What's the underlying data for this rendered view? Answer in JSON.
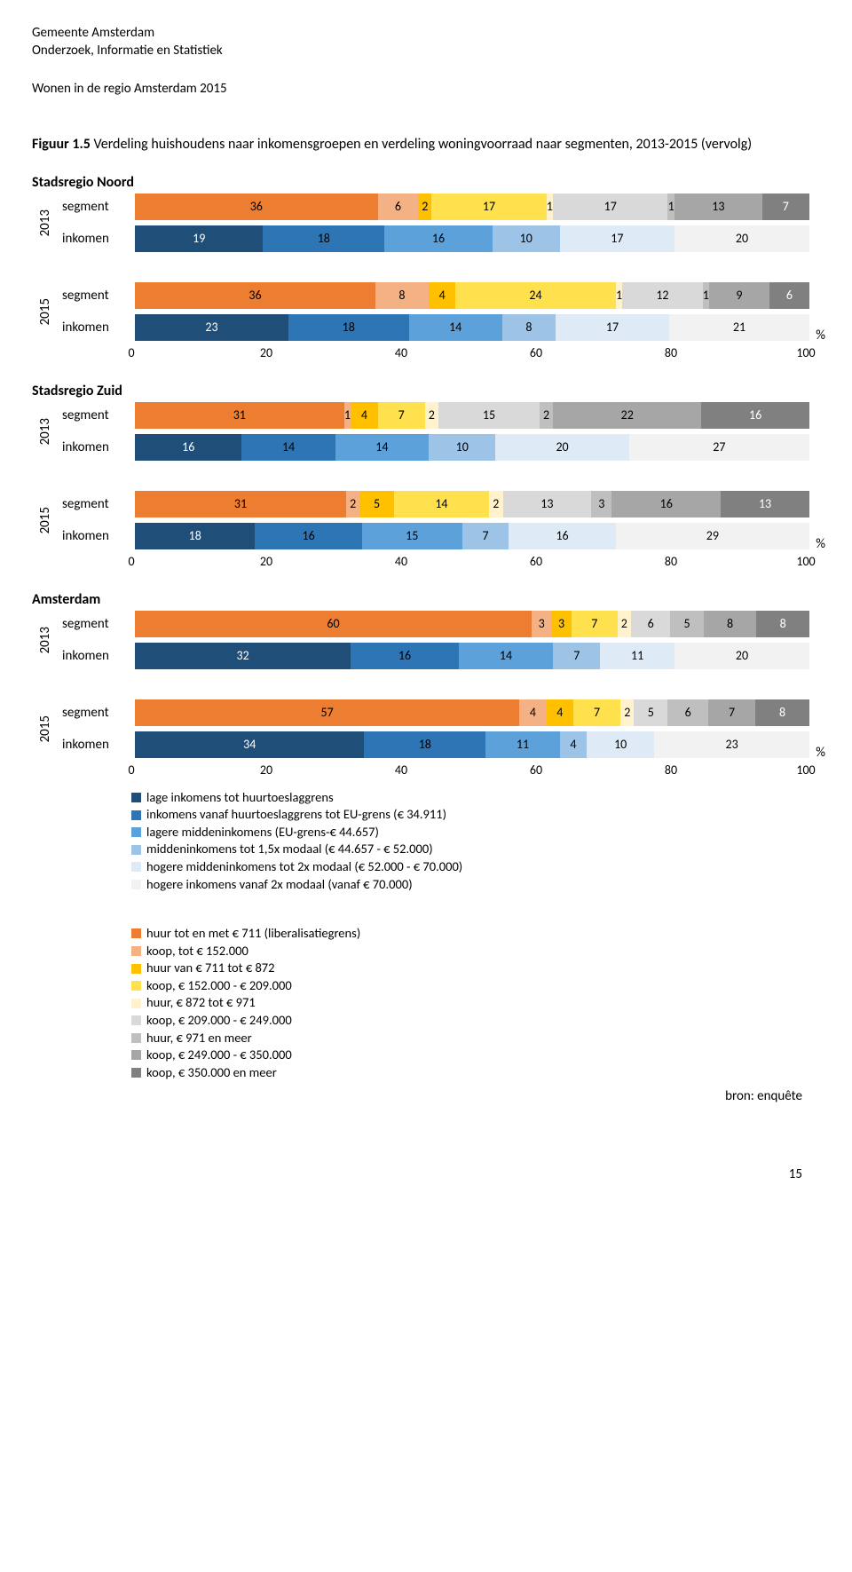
{
  "header": {
    "org": "Gemeente Amsterdam",
    "dept": "Onderzoek, Informatie en Statistiek",
    "report": "Wonen in de regio Amsterdam 2015"
  },
  "figure": {
    "prefix": "Figuur 1.5",
    "title_rest": "  Verdeling huishoudens naar inkomensgroepen en verdeling woningvoorraad naar segmenten, 2013-2015 (vervolg)"
  },
  "colors": {
    "segment": [
      "#ED7D31",
      "#F4B183",
      "#FFC000",
      "#FFE14D",
      "#FFF2CC",
      "#D9D9D9",
      "#BFBFBF",
      "#A6A6A6",
      "#808080",
      "#595959"
    ],
    "inkomen": [
      "#1F4E79",
      "#2E75B6",
      "#5DA1DB",
      "#9DC3E6",
      "#DEEBF7",
      "#F2F2F2"
    ],
    "text_light_on": [
      "#1F4E79",
      "#595959",
      "#808080"
    ]
  },
  "axis": {
    "ticks": [
      0,
      20,
      40,
      60,
      80,
      100
    ],
    "pct": "%"
  },
  "row_labels": {
    "segment": "segment",
    "inkomen": "inkomen"
  },
  "regions": [
    {
      "name": "Stadsregio Noord",
      "years": [
        {
          "year": "2013",
          "segment": [
            36,
            6,
            2,
            17,
            1,
            17,
            1,
            13,
            7
          ],
          "inkomen": [
            19,
            18,
            16,
            10,
            17,
            20
          ],
          "show_axis": false
        },
        {
          "year": "2015",
          "segment": [
            36,
            8,
            4,
            24,
            1,
            12,
            1,
            9,
            6
          ],
          "segment_pad_to": 101,
          "inkomen": [
            23,
            18,
            14,
            8,
            17,
            21
          ],
          "inkomen_pad_to": 101,
          "show_axis": true
        }
      ]
    },
    {
      "name": "Stadsregio Zuid",
      "years": [
        {
          "year": "2013",
          "segment": [
            31,
            1,
            4,
            7,
            2,
            15,
            2,
            22,
            16
          ],
          "inkomen": [
            16,
            14,
            14,
            10,
            20,
            27
          ],
          "inkomen_pad_to": 101,
          "show_axis": false
        },
        {
          "year": "2015",
          "segment": [
            31,
            2,
            5,
            14,
            2,
            13,
            3,
            16,
            13
          ],
          "segment_pad_to": 99,
          "inkomen": [
            18,
            16,
            15,
            7,
            16,
            29
          ],
          "inkomen_pad_to": 101,
          "show_axis": true
        }
      ]
    },
    {
      "name": "Amsterdam",
      "years": [
        {
          "year": "2013",
          "segment": [
            60,
            3,
            3,
            7,
            2,
            6,
            5,
            8,
            8
          ],
          "segment_pad_to": 102,
          "inkomen": [
            32,
            16,
            14,
            7,
            11,
            20
          ],
          "show_axis": false
        },
        {
          "year": "2015",
          "segment": [
            57,
            4,
            4,
            7,
            2,
            5,
            6,
            7,
            8
          ],
          "inkomen": [
            34,
            18,
            11,
            4,
            10,
            23
          ],
          "show_axis": true
        }
      ]
    }
  ],
  "legend_inkomen": [
    {
      "color": "#1F4E79",
      "label": "lage inkomens tot huurtoeslaggrens"
    },
    {
      "color": "#2E75B6",
      "label": "inkomens vanaf huurtoeslaggrens tot EU-grens (€ 34.911)"
    },
    {
      "color": "#5DA1DB",
      "label": "lagere middeninkomens (EU-grens-€ 44.657)"
    },
    {
      "color": "#9DC3E6",
      "label": "middeninkomens tot 1,5x modaal (€ 44.657 - € 52.000)"
    },
    {
      "color": "#DEEBF7",
      "label": "hogere middeninkomens tot 2x modaal (€ 52.000 - € 70.000)"
    },
    {
      "color": "#F2F2F2",
      "label": "hogere inkomens vanaf 2x modaal (vanaf € 70.000)"
    }
  ],
  "legend_segment": [
    {
      "color": "#ED7D31",
      "label": "huur tot en met € 711 (liberalisatiegrens)"
    },
    {
      "color": "#F4B183",
      "label": "koop, tot € 152.000"
    },
    {
      "color": "#FFC000",
      "label": "huur van € 711 tot € 872"
    },
    {
      "color": "#FFE14D",
      "label": "koop, € 152.000 - € 209.000"
    },
    {
      "color": "#FFF2CC",
      "label": "huur, € 872 tot € 971"
    },
    {
      "color": "#D9D9D9",
      "label": "koop, € 209.000 - € 249.000"
    },
    {
      "color": "#BFBFBF",
      "label": "huur, € 971 en meer"
    },
    {
      "color": "#A6A6A6",
      "label": "koop, € 249.000 - € 350.000"
    },
    {
      "color": "#808080",
      "label": "koop, € 350.000 en meer"
    }
  ],
  "source": "bron: enquête",
  "pagenum": "15"
}
